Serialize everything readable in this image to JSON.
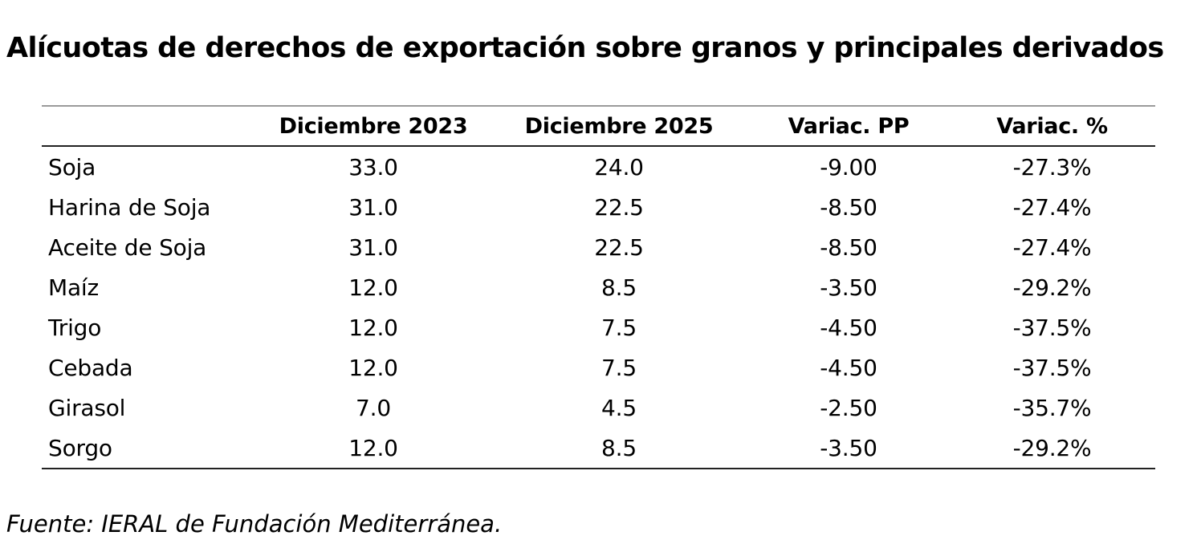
{
  "title": "Alícuotas de derechos de exportación sobre granos y principales derivados",
  "table": {
    "headers": [
      "",
      "Diciembre 2023",
      "Diciembre 2025",
      "Variac. PP",
      "Variac. %"
    ],
    "rows": [
      [
        "Soja",
        "33.0",
        "24.0",
        "-9.00",
        "-27.3%"
      ],
      [
        "Harina de Soja",
        "31.0",
        "22.5",
        "-8.50",
        "-27.4%"
      ],
      [
        "Aceite de Soja",
        "31.0",
        "22.5",
        "-8.50",
        "-27.4%"
      ],
      [
        "Maíz",
        "12.0",
        "8.5",
        "-3.50",
        "-29.2%"
      ],
      [
        "Trigo",
        "12.0",
        "7.5",
        "-4.50",
        "-37.5%"
      ],
      [
        "Cebada",
        "12.0",
        "7.5",
        "-4.50",
        "-37.5%"
      ],
      [
        "Girasol",
        "7.0",
        "4.5",
        "-2.50",
        "-35.7%"
      ],
      [
        "Sorgo",
        "12.0",
        "8.5",
        "-3.50",
        "-29.2%"
      ]
    ]
  },
  "source": "Fuente: IERAL de Fundación Mediterránea."
}
